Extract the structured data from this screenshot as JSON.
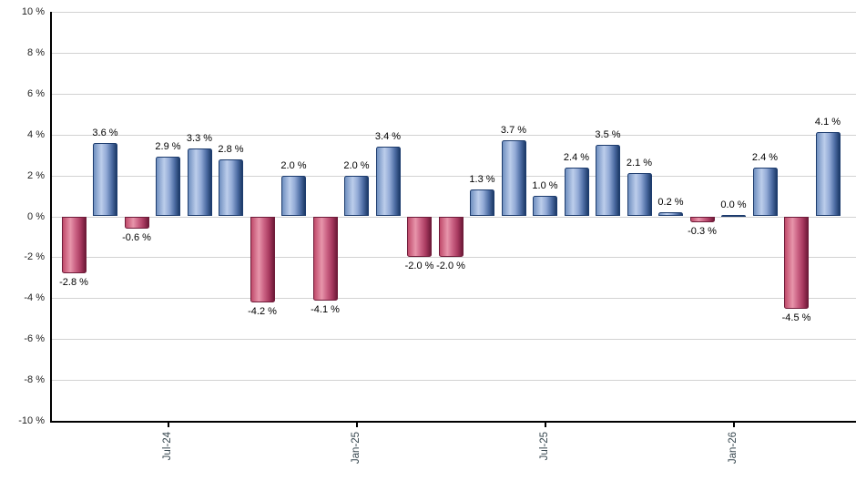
{
  "chart_data": {
    "type": "bar",
    "title": "",
    "xlabel": "",
    "ylabel": "",
    "values": [
      -2.8,
      3.6,
      -0.6,
      2.9,
      3.3,
      2.8,
      -4.2,
      2.0,
      -4.1,
      2.0,
      3.4,
      -2.0,
      -2.0,
      1.3,
      3.7,
      1.0,
      2.4,
      3.5,
      2.1,
      0.2,
      -0.3,
      0.0,
      2.4,
      -4.5,
      4.1
    ],
    "bar_labels": [
      "-2.8 %",
      "3.6 %",
      "-0.6 %",
      "2.9 %",
      "3.3 %",
      "2.8 %",
      "-4.2 %",
      "2.0 %",
      "-4.1 %",
      "2.0 %",
      "3.4 %",
      "-2.0 %",
      "-2.0 %",
      "1.3 %",
      "3.7 %",
      "1.0 %",
      "2.4 %",
      "3.5 %",
      "2.1 %",
      "0.2 %",
      "-0.3 %",
      "0.0 %",
      "2.4 %",
      "-4.5 %",
      "4.1 %"
    ],
    "x_tick_labels": [
      {
        "bar_index": 3,
        "label": "Jul-24"
      },
      {
        "bar_index": 9,
        "label": "Jan-25"
      },
      {
        "bar_index": 15,
        "label": "Jul-25"
      },
      {
        "bar_index": 21,
        "label": "Jan-26"
      }
    ],
    "y_tick_labels": [
      "10 %",
      "8 %",
      "6 %",
      "4 %",
      "2 %",
      "0 %",
      "-2 %",
      "-4 %",
      "-6 %",
      "-8 %",
      "-10 %"
    ],
    "ylim": [
      -10,
      10
    ],
    "y_step": 2,
    "grid": "horizontal",
    "legend": "none",
    "colors": {
      "positive_fill_stops": [
        "#7090c0",
        "#bccdeb",
        "#93abd6",
        "#506fa6",
        "#1c3a68"
      ],
      "negative_fill_stops": [
        "#c04a6a",
        "#e795ab",
        "#cc6485",
        "#a93a60",
        "#6e1a38"
      ],
      "positive_border": "#1d3c6e",
      "negative_border": "#701c3a",
      "gridline": "#d2d2d2",
      "axis": "#000000",
      "value_label": "#000000",
      "axis_label": "#37474f"
    }
  }
}
